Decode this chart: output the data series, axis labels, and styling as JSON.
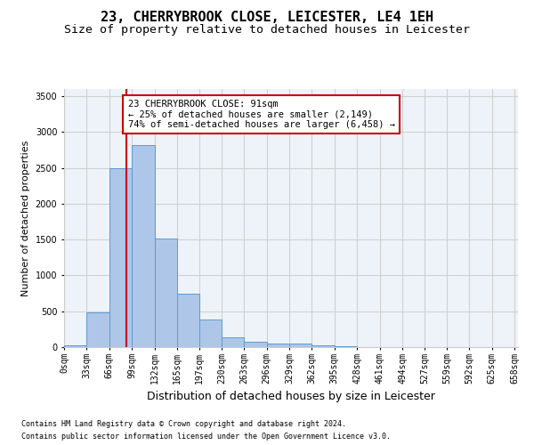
{
  "title": "23, CHERRYBROOK CLOSE, LEICESTER, LE4 1EH",
  "subtitle": "Size of property relative to detached houses in Leicester",
  "xlabel": "Distribution of detached houses by size in Leicester",
  "ylabel": "Number of detached properties",
  "footnote1": "Contains HM Land Registry data © Crown copyright and database right 2024.",
  "footnote2": "Contains public sector information licensed under the Open Government Licence v3.0.",
  "annotation_line1": "23 CHERRYBROOK CLOSE: 91sqm",
  "annotation_line2": "← 25% of detached houses are smaller (2,149)",
  "annotation_line3": "74% of semi-detached houses are larger (6,458) →",
  "property_size": 91,
  "bin_width": 33,
  "bin_starts": [
    0,
    33,
    66,
    99,
    132,
    165,
    197,
    230,
    263,
    296,
    329,
    362,
    395,
    428,
    461,
    494,
    527,
    559,
    592,
    625
  ],
  "bin_labels": [
    "0sqm",
    "33sqm",
    "66sqm",
    "99sqm",
    "132sqm",
    "165sqm",
    "197sqm",
    "230sqm",
    "263sqm",
    "296sqm",
    "329sqm",
    "362sqm",
    "395sqm",
    "428sqm",
    "461sqm",
    "494sqm",
    "527sqm",
    "559sqm",
    "592sqm",
    "625sqm",
    "658sqm"
  ],
  "bar_heights": [
    30,
    480,
    2500,
    2820,
    1510,
    750,
    385,
    140,
    70,
    52,
    52,
    30,
    10,
    0,
    0,
    0,
    0,
    0,
    0,
    0
  ],
  "bar_color": "#aec6e8",
  "bar_edge_color": "#5b9bd5",
  "vline_color": "#cc0000",
  "vline_x": 91,
  "ylim": [
    0,
    3600
  ],
  "yticks": [
    0,
    500,
    1000,
    1500,
    2000,
    2500,
    3000,
    3500
  ],
  "grid_color": "#d0d0d0",
  "bg_color": "#eef3fa",
  "annotation_box_color": "#cc0000",
  "title_fontsize": 11,
  "subtitle_fontsize": 9.5,
  "axis_label_fontsize": 8,
  "tick_fontsize": 7,
  "annotation_fontsize": 7.5,
  "footnote_fontsize": 6
}
